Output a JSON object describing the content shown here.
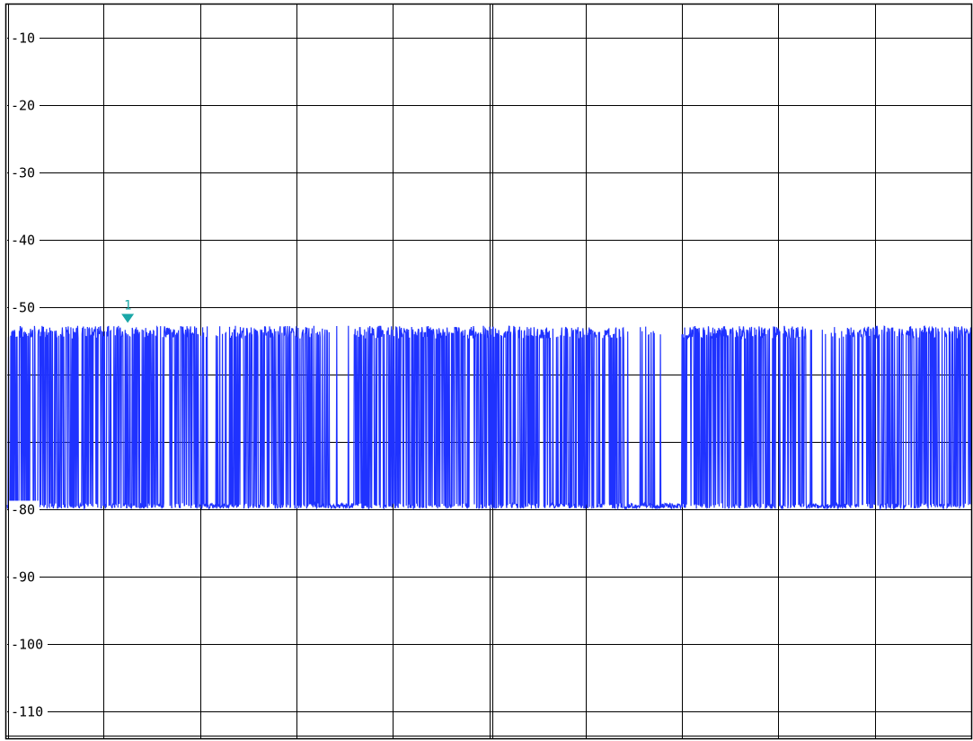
{
  "chart_data": {
    "type": "line",
    "title": "",
    "xlabel": "",
    "ylabel": "",
    "ylim": [
      -114,
      -5
    ],
    "y_ticks": [
      "-10",
      "-20",
      "-30",
      "-40",
      "-50",
      "-60",
      "-70",
      "-80",
      "-90",
      "-100",
      "-110"
    ],
    "y_tick_values": [
      -10,
      -20,
      -30,
      -40,
      -50,
      -60,
      -70,
      -80,
      -90,
      -100,
      -110
    ],
    "y_tick_label_shown": [
      true,
      true,
      true,
      true,
      true,
      false,
      false,
      true,
      true,
      true,
      true
    ],
    "x_divisions": 10,
    "grid": true,
    "series": [
      {
        "trace_color": "#1f32ff",
        "noise_floor_db": -79.5,
        "signal_peak_db": -53,
        "active_segments": [
          [
            0.0,
            0.2
          ],
          [
            0.23,
            0.33
          ],
          [
            0.36,
            0.64
          ],
          [
            0.7,
            0.83
          ],
          [
            0.87,
            1.0
          ]
        ],
        "sparse_segments": [
          [
            0.2,
            0.23
          ],
          [
            0.33,
            0.36
          ],
          [
            0.64,
            0.7
          ],
          [
            0.83,
            0.87
          ]
        ]
      }
    ],
    "markers": [
      {
        "label": "1",
        "x_fraction": 0.125,
        "y": -51.5,
        "color": "#1aa7a7"
      }
    ]
  }
}
